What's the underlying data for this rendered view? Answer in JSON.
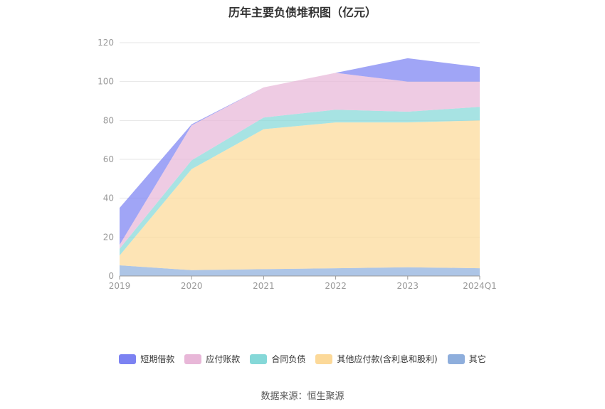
{
  "chart_data": {
    "type": "area",
    "stacked": true,
    "title": "历年主要负债堆积图（亿元）",
    "categories": [
      "2019",
      "2020",
      "2021",
      "2022",
      "2023",
      "2024Q1"
    ],
    "ylim": [
      0,
      120
    ],
    "yticks": [
      0,
      20,
      40,
      60,
      80,
      100,
      120
    ],
    "grid": true,
    "legend_position": "bottom",
    "series": [
      {
        "name": "其它",
        "color": "#8eaedc",
        "values": [
          5.5,
          3,
          3.5,
          4,
          4.5,
          4
        ]
      },
      {
        "name": "其他应付款(含利息和股利)",
        "color": "#fcd999",
        "values": [
          5,
          52,
          72,
          75,
          74.5,
          76
        ]
      },
      {
        "name": "合同负债",
        "color": "#85d8d8",
        "values": [
          3.5,
          4.5,
          6,
          6.5,
          5.5,
          7
        ]
      },
      {
        "name": "应付账款",
        "color": "#e8b7d8",
        "values": [
          2,
          18,
          15.5,
          19,
          15.5,
          13
        ]
      },
      {
        "name": "短期借款",
        "color": "#7c82f2",
        "values": [
          19,
          0.5,
          0,
          0,
          12,
          7.5
        ]
      }
    ]
  },
  "legend": [
    "短期借款",
    "应付账款",
    "合同负债",
    "其他应付款(含利息和股利)",
    "其它"
  ],
  "source_text": "数据来源：恒生聚源"
}
